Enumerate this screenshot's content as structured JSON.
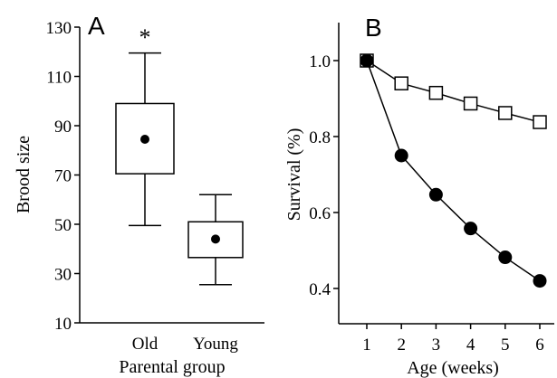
{
  "chart_data": [
    {
      "panel_label": "A",
      "type": "box",
      "categories": [
        "Old",
        "Young"
      ],
      "xlabel": "Parental group",
      "ylabel": "Brood size",
      "ylim": [
        10,
        130
      ],
      "yticks": [
        10,
        30,
        50,
        70,
        90,
        110,
        130
      ],
      "boxes": [
        {
          "category": "Old",
          "whisker_low": 49.5,
          "q1": 70.5,
          "mean": 84.5,
          "q3": 99,
          "whisker_high": 119.5
        },
        {
          "category": "Young",
          "whisker_low": 25.5,
          "q1": 36.5,
          "mean": 44,
          "q3": 51,
          "whisker_high": 62
        }
      ],
      "annotations": [
        {
          "category": "Old",
          "text": "*",
          "y": 125
        }
      ]
    },
    {
      "panel_label": "B",
      "type": "line",
      "xlabel": "Age (weeks)",
      "ylabel": "Survival (%)",
      "x": [
        1,
        2,
        3,
        4,
        5,
        6
      ],
      "xlim": [
        0.6,
        6.4
      ],
      "ylim": [
        0.3,
        1.1
      ],
      "yticks": [
        0.4,
        0.6,
        0.8,
        1.0
      ],
      "ytick_labels": [
        "0.4",
        "0.6",
        "0.8",
        "1.0"
      ],
      "series": [
        {
          "marker": "open-square",
          "values": [
            1.0,
            0.94,
            0.915,
            0.887,
            0.862,
            0.838
          ]
        },
        {
          "marker": "filled-circle",
          "values": [
            1.0,
            0.75,
            0.647,
            0.558,
            0.482,
            0.42
          ]
        }
      ]
    }
  ]
}
